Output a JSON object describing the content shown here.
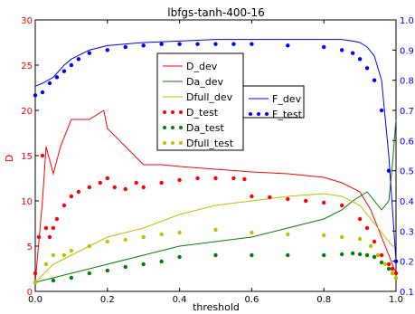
{
  "chart_data": {
    "type": "line",
    "title": "lbfgs-tanh-400-16",
    "xlabel": "threshold",
    "ylabel": "D",
    "xlim": [
      0.0,
      1.0
    ],
    "ylim_left": [
      0,
      30
    ],
    "ylim_right": [
      0.1,
      1.0
    ],
    "x_ticks": [
      "0.0",
      "0.2",
      "0.4",
      "0.6",
      "0.8",
      "1.0"
    ],
    "y_left_ticks": [
      "0",
      "5",
      "10",
      "15",
      "20",
      "25",
      "30"
    ],
    "y_right_ticks": [
      "0.1",
      "0.2",
      "0.3",
      "0.4",
      "0.5",
      "0.6",
      "0.7",
      "0.8",
      "0.9",
      "1.0"
    ],
    "grid": false,
    "legend_placement": "top-center",
    "colors": {
      "red": "#ff0000",
      "green": "#008000",
      "olive": "#bfbf00",
      "blue": "#0000ff",
      "left_axis": "#ff0000",
      "right_axis": "#0000ff"
    },
    "series": [
      {
        "name": "D_dev",
        "axis": "left",
        "style": "line",
        "color": "#ff0000",
        "x": [
          0.0,
          0.02,
          0.03,
          0.05,
          0.07,
          0.1,
          0.15,
          0.19,
          0.2,
          0.25,
          0.3,
          0.35,
          0.4,
          0.5,
          0.6,
          0.7,
          0.75,
          0.8,
          0.85,
          0.9,
          0.93,
          0.95,
          0.97,
          0.99,
          1.0
        ],
        "y": [
          1,
          10,
          16,
          13,
          16,
          19,
          19,
          20,
          18,
          16,
          14,
          14,
          13.8,
          13.5,
          13.2,
          13,
          12.8,
          12.6,
          12,
          11,
          9,
          7,
          5,
          3,
          2
        ]
      },
      {
        "name": "Da_dev",
        "axis": "left",
        "style": "line",
        "color": "#008000",
        "x": [
          0.0,
          0.05,
          0.1,
          0.15,
          0.2,
          0.3,
          0.4,
          0.5,
          0.6,
          0.7,
          0.8,
          0.85,
          0.88,
          0.9,
          0.92,
          0.94,
          0.96,
          0.98,
          0.99,
          1.0
        ],
        "y": [
          1,
          1.5,
          2,
          2.5,
          3,
          4,
          5,
          5.5,
          6,
          7,
          8,
          9,
          10,
          10.5,
          11,
          10,
          9,
          10,
          14,
          19
        ]
      },
      {
        "name": "Dfull_dev",
        "axis": "left",
        "style": "line",
        "color": "#bfbf00",
        "x": [
          0.0,
          0.05,
          0.1,
          0.15,
          0.2,
          0.3,
          0.4,
          0.5,
          0.6,
          0.7,
          0.8,
          0.85,
          0.9,
          0.93,
          0.95,
          0.97,
          0.99,
          1.0
        ],
        "y": [
          1,
          3,
          4,
          5,
          6,
          7,
          8.5,
          9.5,
          10,
          10.5,
          10.8,
          10.5,
          9.5,
          8,
          7,
          6,
          5,
          5
        ]
      },
      {
        "name": "D_test",
        "axis": "left",
        "style": "dots",
        "color": "#ff0000",
        "x": [
          0.0,
          0.01,
          0.02,
          0.03,
          0.04,
          0.05,
          0.06,
          0.08,
          0.1,
          0.12,
          0.15,
          0.18,
          0.2,
          0.22,
          0.25,
          0.28,
          0.3,
          0.35,
          0.4,
          0.45,
          0.5,
          0.55,
          0.58,
          0.6,
          0.65,
          0.7,
          0.75,
          0.8,
          0.85,
          0.9,
          0.92,
          0.94,
          0.96,
          0.98,
          0.99,
          1.0
        ],
        "y": [
          2,
          6,
          15,
          7,
          6,
          7,
          8,
          9.5,
          10.5,
          11,
          11.5,
          12,
          12.5,
          11.5,
          11.3,
          12,
          11.5,
          12,
          12.3,
          12.5,
          12.5,
          12.5,
          12.4,
          10.5,
          10.4,
          10.2,
          10,
          9.8,
          9.5,
          8,
          7,
          5.5,
          4,
          3,
          2.5,
          2
        ]
      },
      {
        "name": "Da_test",
        "axis": "left",
        "style": "dots",
        "color": "#008000",
        "x": [
          0.0,
          0.05,
          0.1,
          0.15,
          0.2,
          0.25,
          0.3,
          0.35,
          0.4,
          0.5,
          0.6,
          0.7,
          0.8,
          0.85,
          0.88,
          0.9,
          0.92,
          0.94,
          0.96,
          0.98,
          0.99,
          1.0
        ],
        "y": [
          1,
          1.2,
          1.5,
          2,
          2.3,
          2.7,
          3,
          3.3,
          3.8,
          4,
          4,
          4,
          4,
          4.1,
          4.2,
          4.1,
          4,
          3.8,
          3.2,
          2.5,
          2,
          1.5
        ]
      },
      {
        "name": "Dfull_test",
        "axis": "left",
        "style": "dots",
        "color": "#bfbf00",
        "x": [
          0.0,
          0.03,
          0.05,
          0.08,
          0.1,
          0.15,
          0.2,
          0.25,
          0.3,
          0.35,
          0.4,
          0.5,
          0.6,
          0.7,
          0.8,
          0.85,
          0.9,
          0.93,
          0.95,
          0.97,
          0.99,
          1.0
        ],
        "y": [
          1,
          3,
          4,
          4,
          4.5,
          5,
          5.5,
          5.7,
          6,
          6.3,
          6.5,
          6.8,
          6.5,
          6.3,
          6.2,
          6,
          5.8,
          5,
          4,
          3,
          2,
          1.5
        ]
      },
      {
        "name": "F_dev",
        "axis": "right",
        "style": "line",
        "color": "#0000ff",
        "x": [
          0.0,
          0.02,
          0.05,
          0.08,
          0.1,
          0.15,
          0.2,
          0.3,
          0.4,
          0.5,
          0.6,
          0.7,
          0.8,
          0.85,
          0.88,
          0.9,
          0.92,
          0.94,
          0.96,
          0.98,
          1.0
        ],
        "y": [
          0.78,
          0.79,
          0.81,
          0.85,
          0.87,
          0.9,
          0.915,
          0.925,
          0.93,
          0.935,
          0.935,
          0.935,
          0.935,
          0.935,
          0.93,
          0.925,
          0.91,
          0.88,
          0.8,
          0.55,
          0.2
        ]
      },
      {
        "name": "F_test",
        "axis": "right",
        "style": "dots",
        "color": "#0000ff",
        "x": [
          0.0,
          0.02,
          0.04,
          0.06,
          0.08,
          0.1,
          0.12,
          0.15,
          0.2,
          0.25,
          0.3,
          0.35,
          0.4,
          0.45,
          0.5,
          0.55,
          0.6,
          0.7,
          0.8,
          0.85,
          0.88,
          0.9,
          0.92,
          0.94,
          0.96,
          0.98,
          1.0
        ],
        "y": [
          0.75,
          0.76,
          0.79,
          0.81,
          0.83,
          0.85,
          0.87,
          0.89,
          0.9,
          0.91,
          0.915,
          0.92,
          0.92,
          0.92,
          0.92,
          0.92,
          0.92,
          0.915,
          0.91,
          0.9,
          0.89,
          0.87,
          0.84,
          0.8,
          0.7,
          0.5,
          0.2
        ]
      }
    ],
    "legend_groups": [
      [
        "D_dev",
        "Da_dev",
        "Dfull_dev",
        "D_test",
        "Da_test",
        "Dfull_test"
      ],
      [
        "F_dev",
        "F_test"
      ]
    ]
  }
}
